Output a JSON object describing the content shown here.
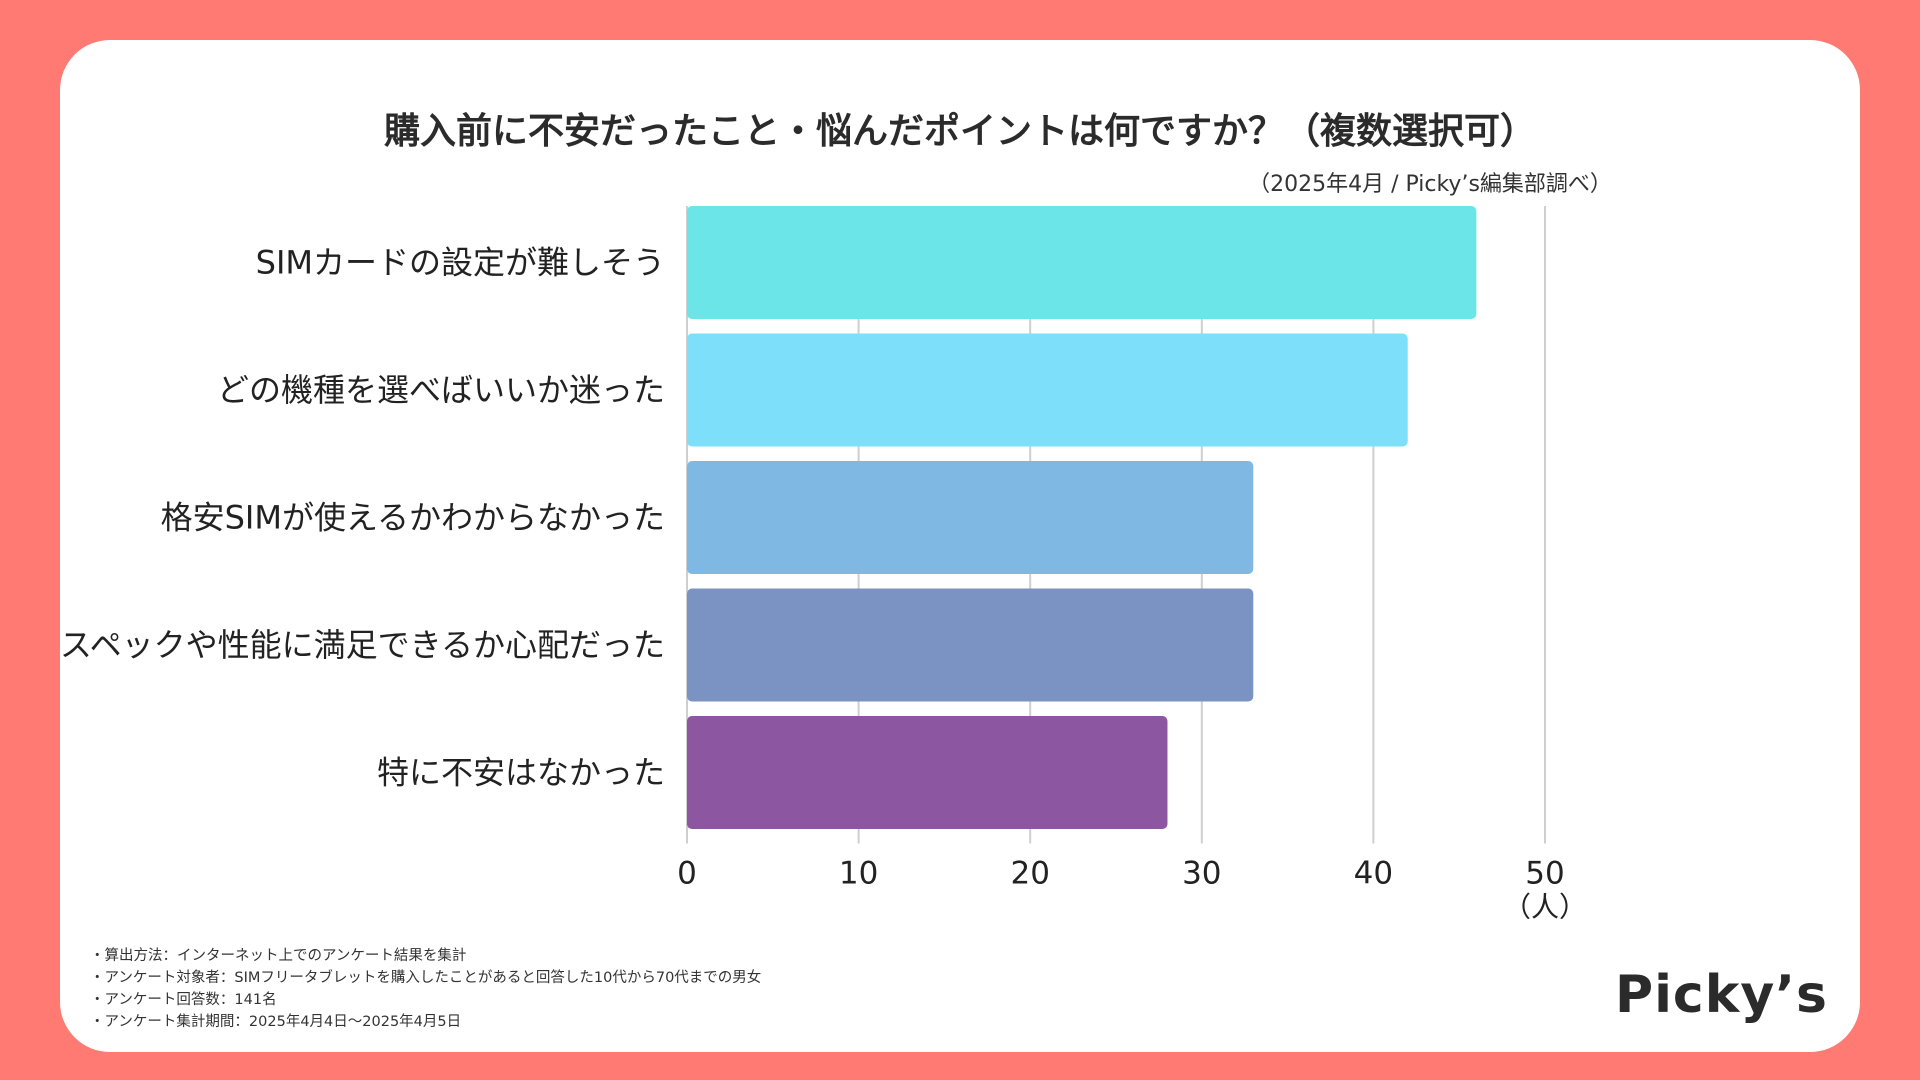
{
  "chart_data": {
    "type": "bar",
    "orientation": "horizontal",
    "title": "購入前に不安だったこと・悩んだポイントは何ですか？（複数選択可）",
    "source": "（2025年4月 / Picky’s編集部調べ）",
    "categories": [
      "SIMカードの設定が難しそう",
      "どの機種を選べばいいか迷った",
      "格安SIMが使えるかわからなかった",
      "スペックや性能に満足できるか心配だった",
      "特に不安はなかった"
    ],
    "values": [
      46,
      42,
      33,
      33,
      28
    ],
    "colors": [
      "#6ce5e8",
      "#7ddff9",
      "#7fb9e3",
      "#7b93c3",
      "#8c56a0"
    ],
    "xlim": [
      0,
      50
    ],
    "ticks": [
      0,
      10,
      20,
      30,
      40,
      50
    ],
    "xlabel_unit": "（人）",
    "grid": true
  },
  "notes": [
    "・算出方法：インターネット上でのアンケート結果を集計",
    "・アンケート対象者：SIMフリータブレットを購入したことがあると回答した10代から70代までの男女",
    "・アンケート回答数：141名",
    "・アンケート集計期間：2025年4月4日〜2025年4月5日"
  ],
  "logo": "Picky’s"
}
